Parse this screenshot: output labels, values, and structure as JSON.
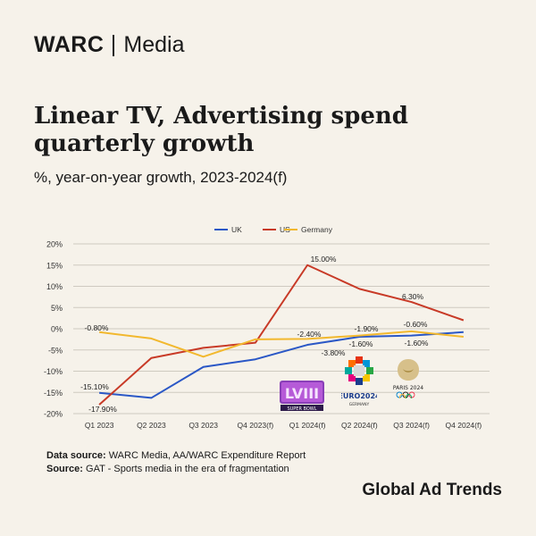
{
  "brand": {
    "name": "WARC",
    "section": "Media"
  },
  "title": "Linear TV, Advertising spend quarterly growth",
  "subtitle": "%, year-on-year growth, 2023-2024(f)",
  "colors": {
    "UK": "#2a57c6",
    "US": "#c83a27",
    "Germany": "#f2b82e"
  },
  "chart_data": {
    "type": "line",
    "categories": [
      "Q1 2023",
      "Q2 2023",
      "Q3 2023",
      "Q4 2023(f)",
      "Q1 2024(f)",
      "Q2 2024(f)",
      "Q3 2024(f)",
      "Q4 2024(f)"
    ],
    "series": [
      {
        "name": "UK",
        "values": [
          -15.1,
          -16.3,
          -9.0,
          -7.2,
          -3.8,
          -1.9,
          -1.6,
          -0.8
        ]
      },
      {
        "name": "US",
        "values": [
          -17.9,
          -6.9,
          -4.5,
          -3.3,
          15.0,
          9.4,
          6.3,
          2.0
        ]
      },
      {
        "name": "Germany",
        "values": [
          -0.8,
          -2.3,
          -6.6,
          -2.5,
          -2.4,
          -1.6,
          -0.6,
          -1.9
        ]
      }
    ],
    "yticks": [
      "20%",
      "15%",
      "10%",
      "5%",
      "0%",
      "-5%",
      "-10%",
      "-15%",
      "-20%"
    ],
    "ylim": [
      -20,
      20
    ],
    "grid": true,
    "legend": "top-center",
    "data_labels": [
      {
        "text": "-0.80%"
      },
      {
        "text": "-15.10%"
      },
      {
        "text": "-17.90%"
      },
      {
        "text": "15.00%"
      },
      {
        "text": "-2.40%"
      },
      {
        "text": "-3.80%"
      },
      {
        "text": "-1.90%"
      },
      {
        "text": "-1.60%"
      },
      {
        "text": "6.30%"
      },
      {
        "text": "-0.60%"
      },
      {
        "text": "-1.60%"
      }
    ]
  },
  "logos": [
    {
      "name": "LVIII",
      "caption": "SUPER BOWL"
    },
    {
      "name": "EURO2024",
      "caption": "GERMANY"
    },
    {
      "name": "PARIS 2024"
    }
  ],
  "footer": {
    "line1_label": "Data source:",
    "line1_text": "WARC Media, AA/WARC Expenditure Report",
    "line2_label": "Source:",
    "line2_text": "GAT - Sports media in the era of fragmentation"
  },
  "gat": "Global Ad Trends"
}
